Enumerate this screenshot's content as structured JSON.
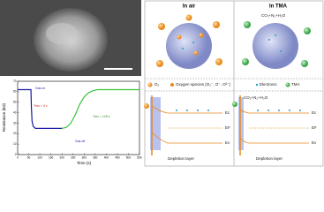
{
  "chart_data": {
    "type": "line",
    "xlabel": "Time (s)",
    "ylabel": "Resistance (kΩ)",
    "xlim": [
      0,
      550
    ],
    "xticks": [
      0,
      50,
      100,
      150,
      200,
      250,
      300,
      350,
      400,
      450,
      500,
      550
    ],
    "ylim": [
      0,
      70
    ],
    "yticks": [
      0,
      10,
      20,
      30,
      40,
      50,
      60,
      70
    ],
    "series": [
      {
        "color": "#1a1aa6",
        "x": [
          0,
          20,
          40,
          60,
          62,
          65,
          70,
          80,
          100,
          150,
          200
        ],
        "values": [
          62,
          62,
          62,
          62,
          45,
          32,
          27,
          25,
          25,
          25,
          25
        ]
      },
      {
        "color": "#3cc43c",
        "x": [
          200,
          220,
          240,
          260,
          280,
          300,
          320,
          340,
          360,
          400,
          450,
          500,
          550
        ],
        "values": [
          25,
          26,
          30,
          38,
          48,
          55,
          59,
          61,
          62,
          62,
          62,
          62,
          62
        ]
      }
    ],
    "annotations": [
      "Gas on",
      "Gas off",
      "Tres = 3 s",
      "Trec = 125 s"
    ]
  },
  "panel": {
    "columns": [
      "In air",
      "In TMA"
    ],
    "product": "CO₂+N₂+H₂O",
    "legend": [
      "O₂",
      "Oxygen species (O₂⁻, O⁻, O²⁻)",
      "Electronic",
      "TMA"
    ],
    "band_diagrams": [
      {
        "levels": [
          "Ec",
          "EF",
          "Ev"
        ],
        "depletion": "Depletion layer"
      },
      {
        "product": "CO₂+N₂+H₂O",
        "levels": [
          "Ec",
          "EF",
          "Ev"
        ],
        "depletion": "Depletion layer"
      }
    ]
  }
}
